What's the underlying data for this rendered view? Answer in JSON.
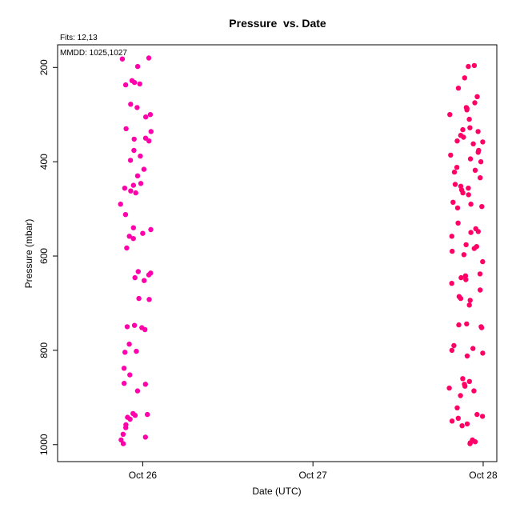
{
  "chart_data": {
    "type": "scatter",
    "title": "Pressure  vs. Date",
    "subtitle_fits": "Fits: 12,13",
    "annotation_mmdd": "MMDD: 1025,1027",
    "xlabel": "Date (UTC)",
    "ylabel": "Pressure (mbar)",
    "y_inverted": true,
    "xlim_days_since_oct26": [
      -0.5,
      2.08
    ],
    "ylim": [
      1036,
      152
    ],
    "x_ticks": [
      {
        "label": "Oct 26",
        "value": 0
      },
      {
        "label": "Oct 27",
        "value": 1
      },
      {
        "label": "Oct 28",
        "value": 2
      }
    ],
    "y_ticks": [
      200,
      400,
      600,
      800,
      1000
    ],
    "grid": false,
    "series": [
      {
        "color": "#ff00aa",
        "x_center": -0.04,
        "x_spread": 0.09,
        "pressures": [
          180,
          182,
          198,
          228,
          232,
          235,
          237,
          278,
          285,
          300,
          305,
          330,
          336,
          350,
          352,
          356,
          376,
          388,
          397,
          416,
          430,
          446,
          450,
          456,
          462,
          466,
          490,
          512,
          540,
          544,
          552,
          558,
          563,
          583,
          633,
          636,
          640,
          646,
          652,
          690,
          692,
          747,
          750,
          752,
          756,
          787,
          802,
          804,
          838,
          852,
          870,
          872,
          886,
          934,
          936,
          938,
          942,
          946,
          958,
          964,
          978,
          984,
          990,
          998
        ]
      },
      {
        "color": "#ff0066",
        "x_center": 1.9,
        "x_spread": 0.1,
        "pressures": [
          196,
          198,
          222,
          244,
          262,
          275,
          285,
          287,
          290,
          300,
          310,
          328,
          332,
          336,
          344,
          348,
          356,
          358,
          362,
          376,
          380,
          386,
          394,
          400,
          412,
          418,
          422,
          434,
          448,
          452,
          456,
          460,
          466,
          470,
          486,
          490,
          495,
          498,
          530,
          542,
          548,
          550,
          558,
          576,
          580,
          584,
          590,
          597,
          612,
          638,
          642,
          646,
          650,
          658,
          672,
          686,
          690,
          694,
          704,
          744,
          746,
          750,
          752,
          790,
          796,
          800,
          806,
          812,
          860,
          866,
          872,
          876,
          880,
          886,
          896,
          922,
          936,
          940,
          944,
          950,
          956,
          960,
          990,
          994,
          996,
          998
        ]
      }
    ]
  }
}
